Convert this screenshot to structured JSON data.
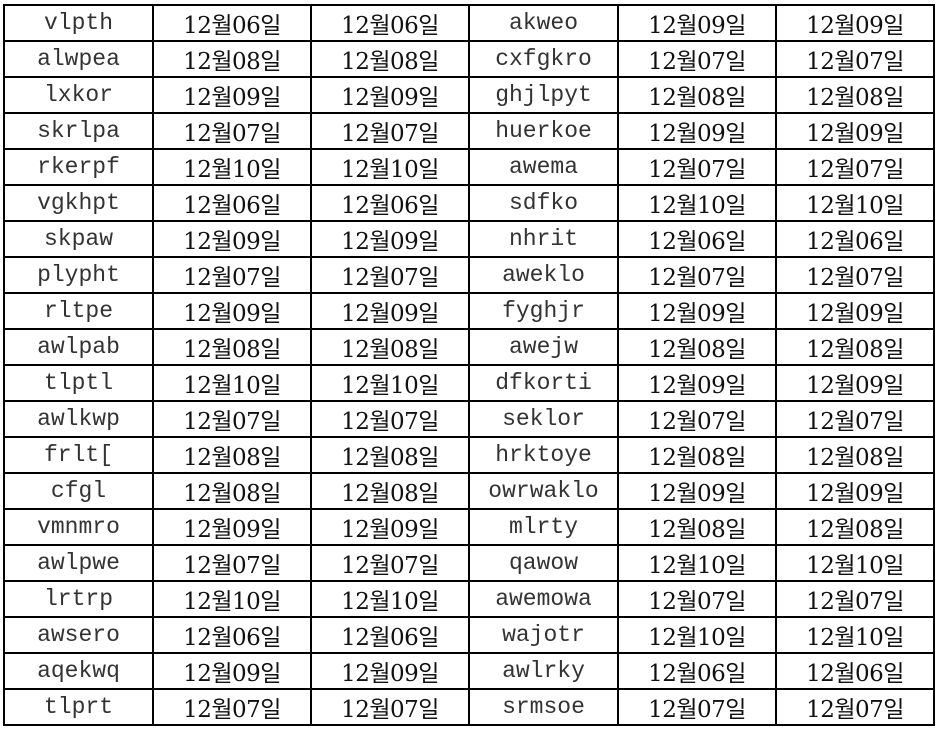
{
  "table": {
    "rows": [
      [
        "vlpth",
        "12월06일",
        "12월06일",
        "akweo",
        "12월09일",
        "12월09일"
      ],
      [
        "alwpea",
        "12월08일",
        "12월08일",
        "cxfgkro",
        "12월07일",
        "12월07일"
      ],
      [
        "lxkor",
        "12월09일",
        "12월09일",
        "ghjlpyt",
        "12월08일",
        "12월08일"
      ],
      [
        "skrlpa",
        "12월07일",
        "12월07일",
        "huerkoe",
        "12월09일",
        "12월09일"
      ],
      [
        "rkerpf",
        "12월10일",
        "12월10일",
        "awema",
        "12월07일",
        "12월07일"
      ],
      [
        "vgkhpt",
        "12월06일",
        "12월06일",
        "sdfko",
        "12월10일",
        "12월10일"
      ],
      [
        "skpaw",
        "12월09일",
        "12월09일",
        "nhrit",
        "12월06일",
        "12월06일"
      ],
      [
        "plypht",
        "12월07일",
        "12월07일",
        "aweklo",
        "12월07일",
        "12월07일"
      ],
      [
        "rltpe",
        "12월09일",
        "12월09일",
        "fyghjr",
        "12월09일",
        "12월09일"
      ],
      [
        "awlpab",
        "12월08일",
        "12월08일",
        "awejw",
        "12월08일",
        "12월08일"
      ],
      [
        "tlptl",
        "12월10일",
        "12월10일",
        "dfkorti",
        "12월09일",
        "12월09일"
      ],
      [
        "awlkwp",
        "12월07일",
        "12월07일",
        "seklor",
        "12월07일",
        "12월07일"
      ],
      [
        "frlt[",
        "12월08일",
        "12월08일",
        "hrktoye",
        "12월08일",
        "12월08일"
      ],
      [
        "cfgl",
        "12월08일",
        "12월08일",
        "owrwaklo",
        "12월09일",
        "12월09일"
      ],
      [
        "vmnmro",
        "12월09일",
        "12월09일",
        "mlrty",
        "12월08일",
        "12월08일"
      ],
      [
        "awlpwe",
        "12월07일",
        "12월07일",
        "qawow",
        "12월10일",
        "12월10일"
      ],
      [
        "lrtrp",
        "12월10일",
        "12월10일",
        "awemowa",
        "12월07일",
        "12월07일"
      ],
      [
        "awsero",
        "12월06일",
        "12월06일",
        "wajotr",
        "12월10일",
        "12월10일"
      ],
      [
        "aqekwq",
        "12월09일",
        "12월09일",
        "awlrky",
        "12월06일",
        "12월06일"
      ],
      [
        "tlprt",
        "12월07일",
        "12월07일",
        "srmsoe",
        "12월07일",
        "12월07일"
      ]
    ]
  }
}
